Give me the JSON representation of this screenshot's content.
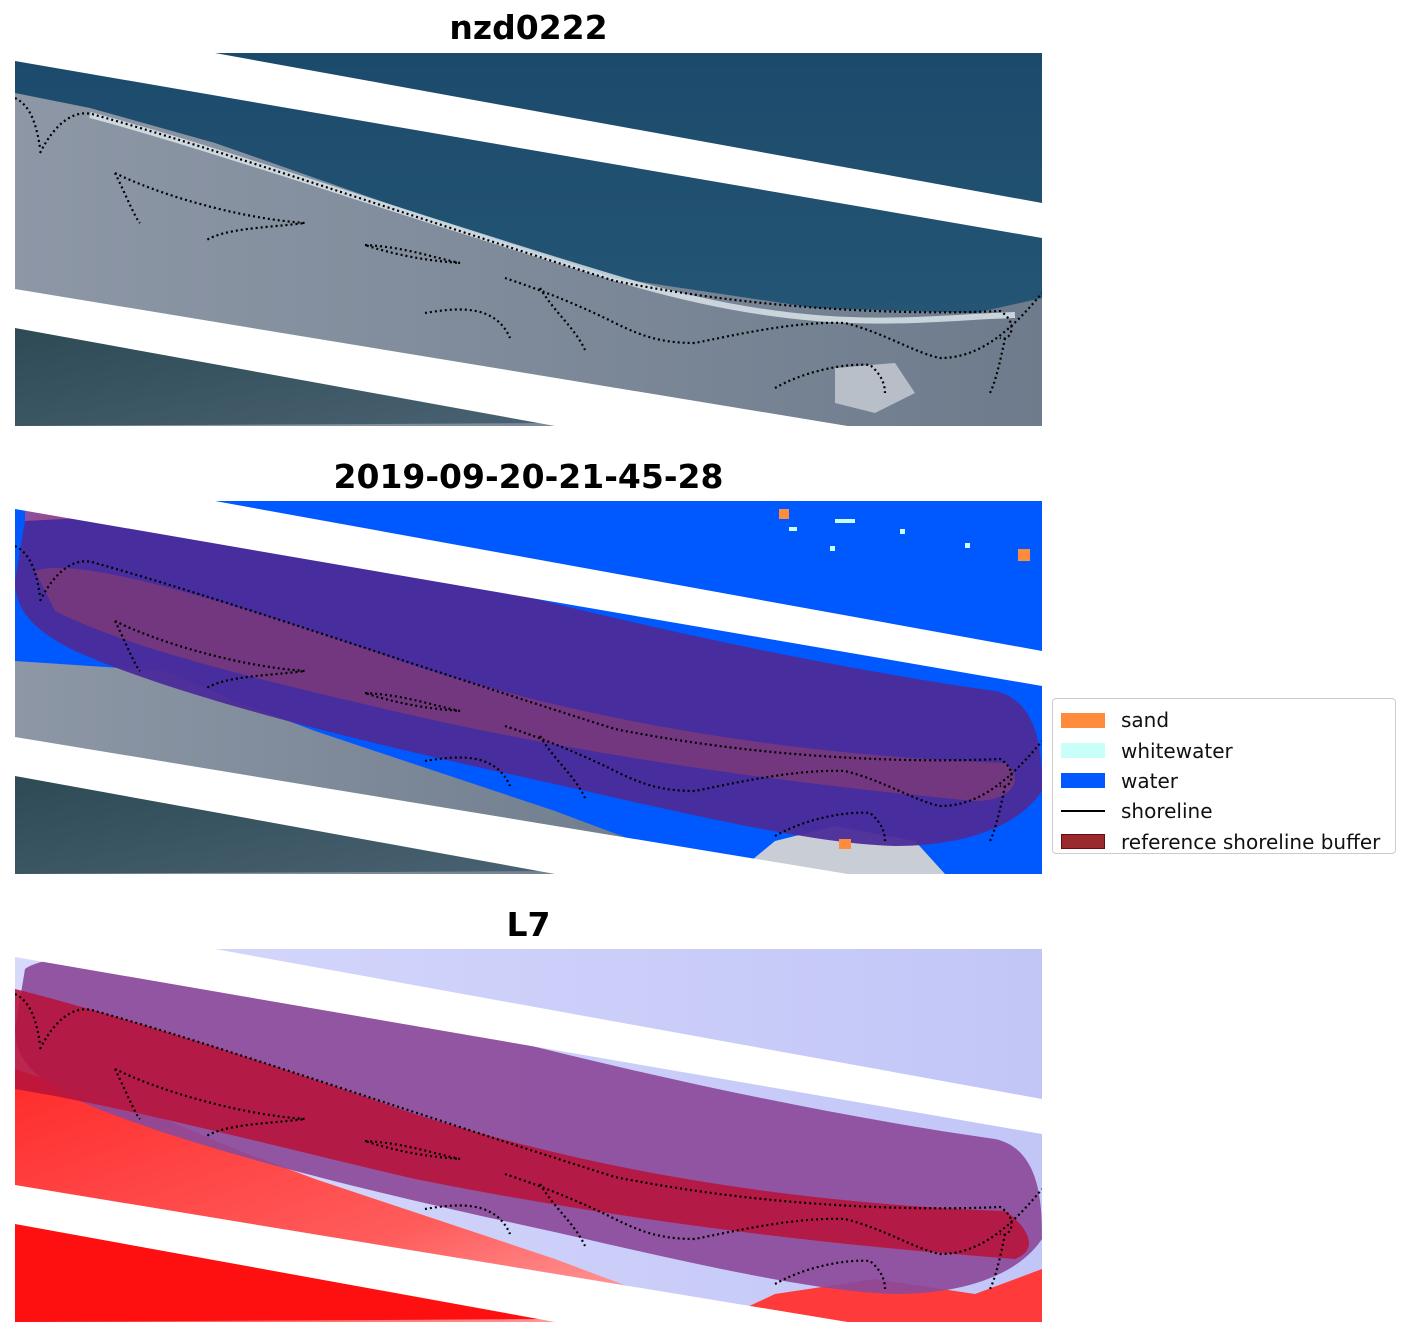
{
  "panels": [
    {
      "id": "rgb",
      "title": "nzd0222"
    },
    {
      "id": "classified",
      "title": "2019-09-20-21-45-28"
    },
    {
      "id": "index",
      "title": "L7"
    }
  ],
  "legend": {
    "items": [
      {
        "label": "sand",
        "kind": "patch",
        "color": "#ff8c3c"
      },
      {
        "label": "whitewater",
        "kind": "patch",
        "color": "#c8fff8"
      },
      {
        "label": "water",
        "kind": "patch",
        "color": "#0059ff"
      },
      {
        "label": "shoreline",
        "kind": "line",
        "color": "#000000"
      },
      {
        "label": "reference shoreline buffer",
        "kind": "patch",
        "color": "#9a2a2e",
        "edge": "#6a0a0e"
      }
    ]
  },
  "colors": {
    "water": "#0059ff",
    "sand": "#ff8c3c",
    "whitewater": "#c8fff8",
    "buffer": "#9a2a2e",
    "ocean_rgb": "#1f4c6e",
    "land_rgb": "#7f8a99",
    "gap": "#ffffff"
  }
}
